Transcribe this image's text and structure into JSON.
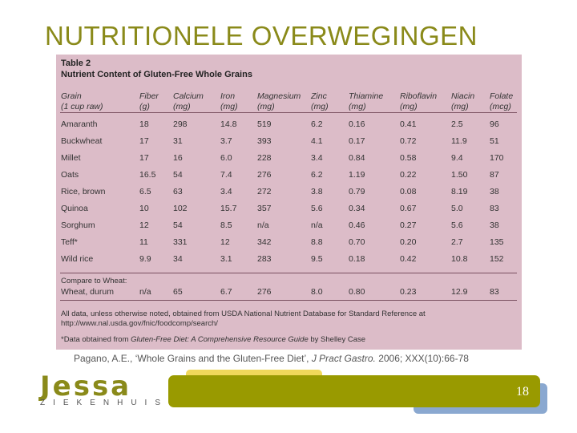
{
  "slide": {
    "title": "NUTRITIONELE OVERWEGINGEN",
    "page_number": "18"
  },
  "table": {
    "number": "Table 2",
    "name": "Nutrient Content of Gluten-Free Whole Grains",
    "headers": [
      [
        "Grain",
        "(1 cup raw)"
      ],
      [
        "Fiber",
        "(g)"
      ],
      [
        "Calcium",
        "(mg)"
      ],
      [
        "Iron",
        "(mg)"
      ],
      [
        "Magnesium",
        "(mg)"
      ],
      [
        "Zinc",
        "(mg)"
      ],
      [
        "Thiamine",
        "(mg)"
      ],
      [
        "Riboflavin",
        "(mg)"
      ],
      [
        "Niacin",
        "(mg)"
      ],
      [
        "Folate",
        "(mcg)"
      ]
    ],
    "rows": [
      [
        "Amaranth",
        "18",
        "298",
        "14.8",
        "519",
        "6.2",
        "0.16",
        "0.41",
        "2.5",
        "96"
      ],
      [
        "Buckwheat",
        "17",
        "31",
        "3.7",
        "393",
        "4.1",
        "0.17",
        "0.72",
        "11.9",
        "51"
      ],
      [
        "Millet",
        "17",
        "16",
        "6.0",
        "228",
        "3.4",
        "0.84",
        "0.58",
        "9.4",
        "170"
      ],
      [
        "Oats",
        "16.5",
        "54",
        "7.4",
        "276",
        "6.2",
        "1.19",
        "0.22",
        "1.50",
        "87"
      ],
      [
        "Rice, brown",
        "6.5",
        "63",
        "3.4",
        "272",
        "3.8",
        "0.79",
        "0.08",
        "8.19",
        "38"
      ],
      [
        "Quinoa",
        "10",
        "102",
        "15.7",
        "357",
        "5.6",
        "0.34",
        "0.67",
        "5.0",
        "83"
      ],
      [
        "Sorghum",
        "12",
        "54",
        "8.5",
        "n/a",
        "n/a",
        "0.46",
        "0.27",
        "5.6",
        "38"
      ],
      [
        "Teff*",
        "11",
        "331",
        "12",
        "342",
        "8.8",
        "0.70",
        "0.20",
        "2.7",
        "135"
      ],
      [
        "Wild rice",
        "9.9",
        "34",
        "3.1",
        "283",
        "9.5",
        "0.18",
        "0.42",
        "10.8",
        "152"
      ]
    ],
    "compare_label": "Compare to Wheat:",
    "compare_row": [
      "Wheat, durum",
      "n/a",
      "65",
      "6.7",
      "276",
      "8.0",
      "0.80",
      "0.23",
      "12.9",
      "83"
    ],
    "footnote_1a": "All data, unless otherwise noted, obtained from USDA National Nutrient Database for Standard Reference at",
    "footnote_1b": "http://www.nal.usda.gov/fnic/foodcomp/search/",
    "footnote_2_prefix": "*Data obtained from ",
    "footnote_2_title": "Gluten-Free Diet: A Comprehensive Resource Guide",
    "footnote_2_suffix": " by Shelley Case"
  },
  "citation": {
    "authors": "Pagano, A.E., ‘Whole Grains and the Gluten-Free Diet’, ",
    "journal": "J Pract Gastro.",
    "details": " 2006; XXX(10):66-78"
  },
  "logo": {
    "main": "Jessa",
    "sub": "ZIEKENHUIS"
  }
}
